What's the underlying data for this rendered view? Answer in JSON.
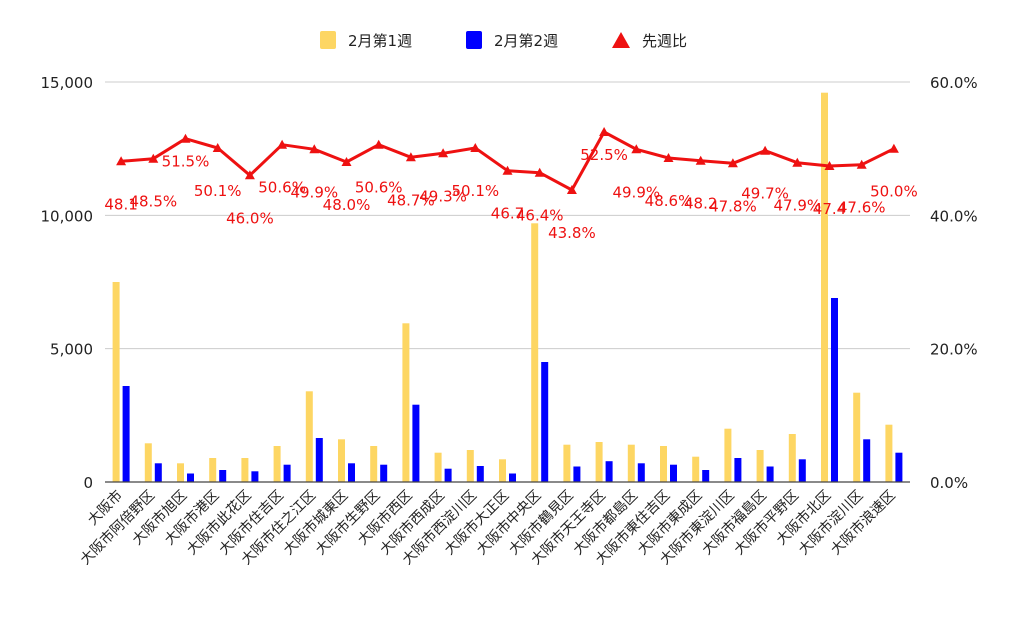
{
  "colors": {
    "week1": "#fdd663",
    "week2": "#0000ff",
    "ratio": "#ee1111",
    "grid": "#cccccc",
    "axis": "#444444",
    "text": "#222222"
  },
  "chart_data": {
    "type": "bar",
    "combo": "bar + line (secondary axis)",
    "title": "",
    "xlabel": "",
    "ylabel": "",
    "legend_position": "top",
    "grid": true,
    "categories": [
      "大阪市",
      "大阪市阿倍野区",
      "大阪市旭区",
      "大阪市港区",
      "大阪市此花区",
      "大阪市住吉区",
      "大阪市住之江区",
      "大阪市城東区",
      "大阪市生野区",
      "大阪市西区",
      "大阪市西成区",
      "大阪市西淀川区",
      "大阪市大正区",
      "大阪市中央区",
      "大阪市鶴見区",
      "大阪市天王寺区",
      "大阪市都島区",
      "大阪市東住吉区",
      "大阪市東成区",
      "大阪市東淀川区",
      "大阪市福島区",
      "大阪市平野区",
      "大阪市北区",
      "大阪市淀川区",
      "大阪市浪速区"
    ],
    "series": [
      {
        "name": "2月第1週",
        "type": "bar",
        "axis": "left",
        "values": [
          7500,
          1450,
          700,
          900,
          900,
          1350,
          3400,
          1600,
          1350,
          5950,
          1100,
          1200,
          850,
          9700,
          1400,
          1500,
          1400,
          1350,
          950,
          2000,
          1200,
          1800,
          14600,
          3350,
          2150
        ]
      },
      {
        "name": "2月第2週",
        "type": "bar",
        "axis": "left",
        "values": [
          3600,
          700,
          320,
          450,
          400,
          650,
          1650,
          700,
          650,
          2900,
          500,
          600,
          320,
          4500,
          580,
          780,
          700,
          650,
          450,
          900,
          580,
          850,
          6900,
          1600,
          1100
        ]
      },
      {
        "name": "先週比",
        "type": "line",
        "axis": "right",
        "values": [
          48.1,
          48.5,
          51.5,
          50.1,
          46.0,
          50.6,
          49.9,
          48.0,
          50.6,
          48.7,
          49.3,
          50.1,
          46.7,
          46.4,
          43.8,
          52.5,
          49.9,
          48.6,
          48.2,
          47.8,
          49.7,
          47.9,
          47.4,
          47.6,
          50.0
        ]
      }
    ],
    "data_labels": [
      "48.1",
      "48.5%",
      "51.5%",
      "50.1%",
      "46.0%",
      "50.6%",
      "49.9%",
      "48.0%",
      "50.6%",
      "48.7%",
      "49.3%",
      "50.1%",
      "46.7",
      "46.4%",
      "43.8%",
      "52.5%",
      "49.9%",
      "48.6%",
      "48.2",
      "47.8%",
      "49.7%",
      "47.9%",
      "47.4",
      "47.6%",
      "50.0%"
    ],
    "y_left": {
      "range": [
        0,
        15000
      ],
      "ticks": [
        "0",
        "5,000",
        "10,000",
        "15,000"
      ]
    },
    "y_right": {
      "range": [
        0,
        60
      ],
      "ticks": [
        "0.0%",
        "20.0%",
        "40.0%",
        "60.0%"
      ]
    }
  }
}
